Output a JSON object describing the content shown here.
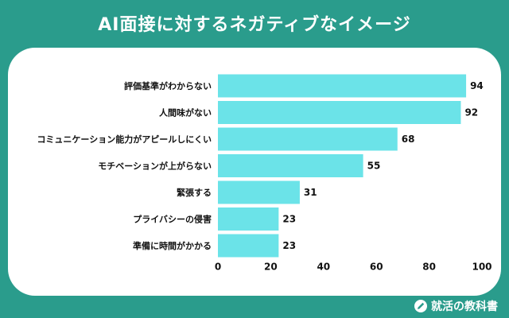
{
  "header": {
    "title": "AI面接に対するネガティブなイメージ"
  },
  "footer": {
    "brand": "就活の教科書",
    "brand_icon": "pencil-logo-icon"
  },
  "colors": {
    "background": "#2a9c8c",
    "bar": "#6be3e8",
    "text": "#111111"
  },
  "chart_data": {
    "type": "bar",
    "orientation": "horizontal",
    "categories": [
      "評価基準がわからない",
      "人間味がない",
      "コミュニケーション能力がアピールしにくい",
      "モチベーションが上がらない",
      "緊張する",
      "プライバシーの侵害",
      "準備に時間がかかる"
    ],
    "values": [
      94,
      92,
      68,
      55,
      31,
      23,
      23
    ],
    "xlim": [
      0,
      100
    ],
    "xticks": [
      0,
      20,
      40,
      60,
      80,
      100
    ],
    "grid": false,
    "title": "",
    "xlabel": "",
    "ylabel": ""
  }
}
